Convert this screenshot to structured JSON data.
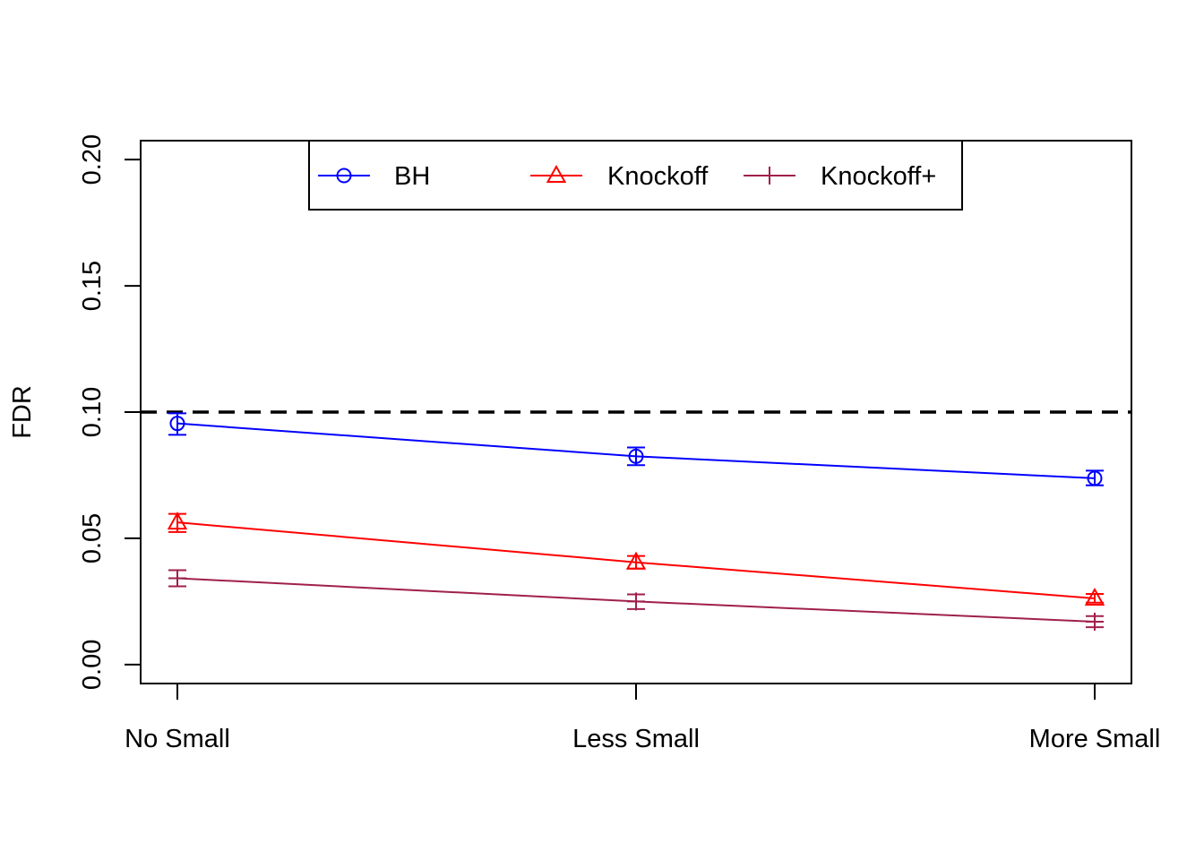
{
  "chart_data": {
    "type": "line",
    "title": "",
    "xlabel": "",
    "ylabel": "FDR",
    "categories": [
      "No Small",
      "Less Small",
      "More Small"
    ],
    "ylim": [
      -0.0075,
      0.2075
    ],
    "yticks": [
      0.0,
      0.05,
      0.1,
      0.15,
      0.2
    ],
    "ytick_labels": [
      "0.00",
      "0.05",
      "0.10",
      "0.15",
      "0.20"
    ],
    "reference_line": {
      "y": 0.1,
      "style": "dashed",
      "color": "#000000"
    },
    "legend": {
      "placement": "top-center",
      "boxed": true
    },
    "grid": false,
    "series": [
      {
        "name": "BH",
        "color": "#0000ff",
        "marker": "circle",
        "values": [
          0.0955,
          0.0825,
          0.0738
        ],
        "error_low": [
          0.091,
          0.079,
          0.071
        ],
        "error_high": [
          0.0995,
          0.086,
          0.0768
        ]
      },
      {
        "name": "Knockoff",
        "color": "#ff0000",
        "marker": "triangle",
        "values": [
          0.0563,
          0.0405,
          0.0262
        ],
        "error_low": [
          0.0525,
          0.038,
          0.0245
        ],
        "error_high": [
          0.0597,
          0.043,
          0.028
        ]
      },
      {
        "name": "Knockoff+",
        "color": "#a0204b",
        "marker": "plus",
        "values": [
          0.0342,
          0.025,
          0.017
        ],
        "error_low": [
          0.031,
          0.022,
          0.0148
        ],
        "error_high": [
          0.0374,
          0.0278,
          0.0192
        ]
      }
    ]
  }
}
